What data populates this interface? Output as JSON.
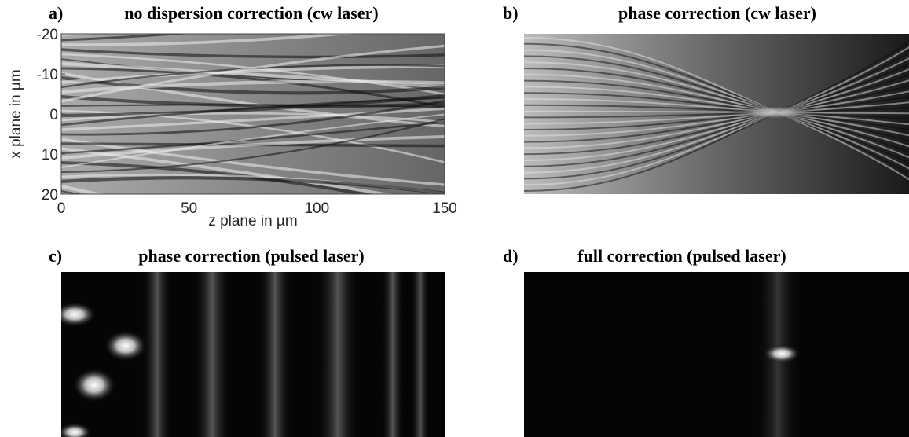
{
  "figure": {
    "panels": [
      {
        "label": "a)",
        "title": "no dispersion correction (cw laser)",
        "xlabel": "z plane in µm",
        "ylabel": "x plane in µm",
        "xlim": [
          0,
          150
        ],
        "xticks": [
          0,
          50,
          100,
          150
        ],
        "ylim": [
          -20,
          20
        ],
        "yticks": [
          -20,
          -10,
          0,
          10,
          20
        ]
      },
      {
        "label": "b)",
        "title": "phase correction (cw laser)"
      },
      {
        "label": "c)",
        "title": "phase correction (pulsed laser)"
      },
      {
        "label": "d)",
        "title": "full correction (pulsed laser)"
      }
    ]
  }
}
